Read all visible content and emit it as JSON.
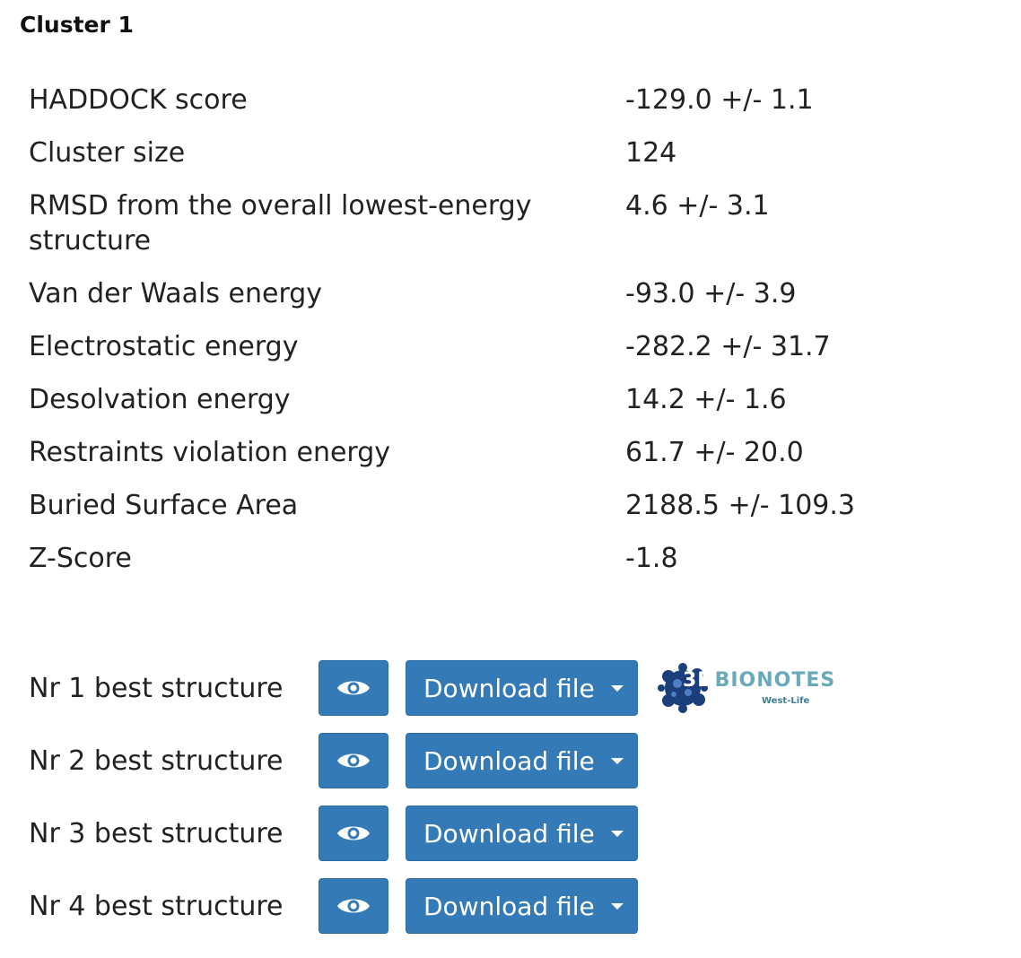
{
  "cluster": {
    "title": "Cluster 1"
  },
  "stats": [
    {
      "label": "HADDOCK score",
      "value": "-129.0 +/- 1.1"
    },
    {
      "label": "Cluster size",
      "value": "124"
    },
    {
      "label": "RMSD from the overall lowest-energy structure",
      "value": "4.6 +/- 3.1"
    },
    {
      "label": "Van der Waals energy",
      "value": "-93.0 +/- 3.9"
    },
    {
      "label": "Electrostatic energy",
      "value": "-282.2 +/- 31.7"
    },
    {
      "label": "Desolvation energy",
      "value": "14.2 +/- 1.6"
    },
    {
      "label": "Restraints violation energy",
      "value": "61.7 +/- 20.0"
    },
    {
      "label": "Buried Surface Area",
      "value": "2188.5 +/- 109.3"
    },
    {
      "label": "Z-Score",
      "value": "-1.8"
    }
  ],
  "structures": [
    {
      "label": "Nr 1 best structure",
      "download_label": "Download file"
    },
    {
      "label": "Nr 2 best structure",
      "download_label": "Download file"
    },
    {
      "label": "Nr 3 best structure",
      "download_label": "Download file"
    },
    {
      "label": "Nr 4 best structure",
      "download_label": "Download file"
    }
  ],
  "bionotes": {
    "prefix": "3D",
    "name": "BIONOTES",
    "sub": "West-Life",
    "color": "#6aa9b8"
  },
  "colors": {
    "button": "#337ab7",
    "button_border": "#2e6da4",
    "text": "#222222"
  },
  "icons": {
    "view": "eye-icon",
    "dropdown": "caret-down-icon"
  }
}
